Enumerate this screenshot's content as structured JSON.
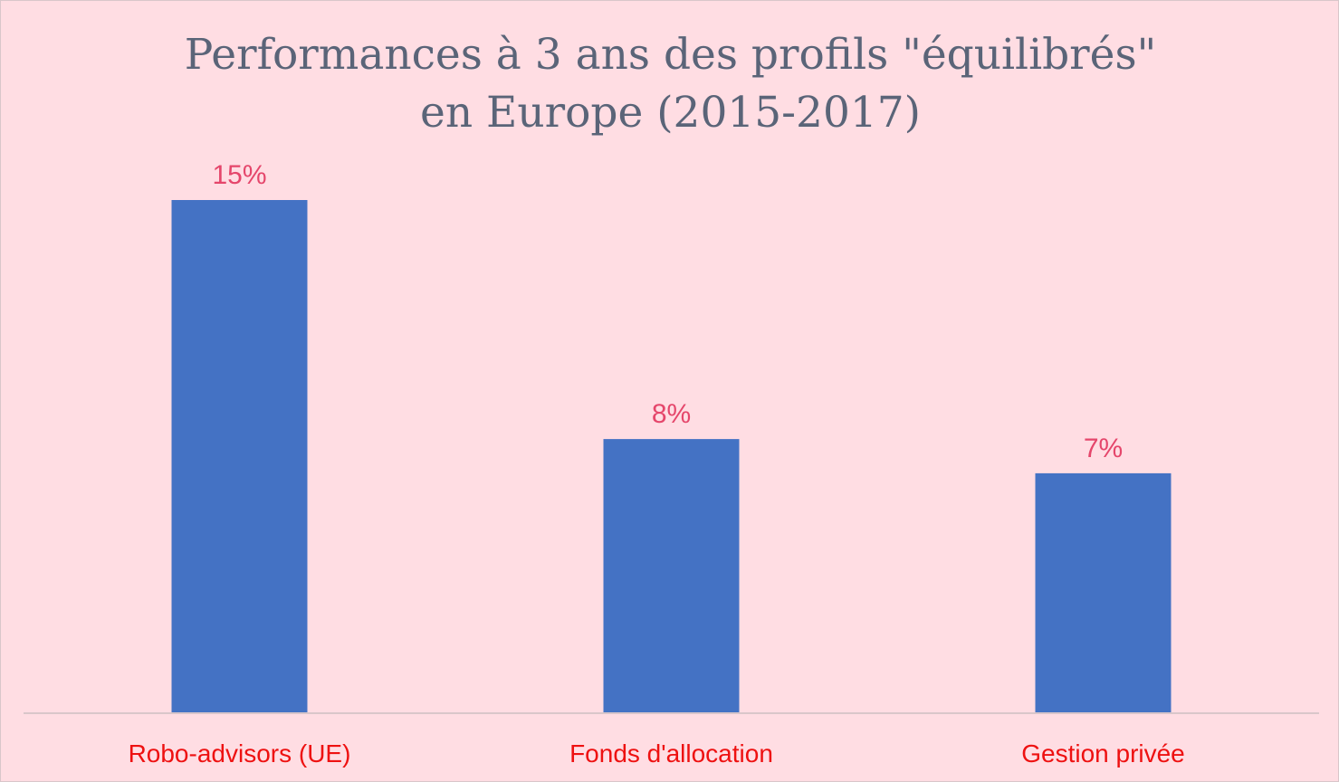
{
  "chart_data": {
    "type": "bar",
    "title_lines": [
      "Performances à 3 ans des profils \"équilibrés\"",
      "en Europe (2015-2017)"
    ],
    "categories": [
      "Robo-advisors (UE)",
      "Fonds d'allocation",
      "Gestion privée"
    ],
    "values": [
      15,
      8,
      7
    ],
    "value_labels": [
      "15%",
      "8%",
      "7%"
    ],
    "xlabel": "",
    "ylabel": "",
    "ylim": [
      0,
      15
    ],
    "grid": false,
    "legend": "none",
    "colors": {
      "bar": "#4472c4",
      "data_label": "#e5466b",
      "category_label": "#ee1111",
      "title": "#5a6478",
      "background": "#ffdde3"
    }
  }
}
